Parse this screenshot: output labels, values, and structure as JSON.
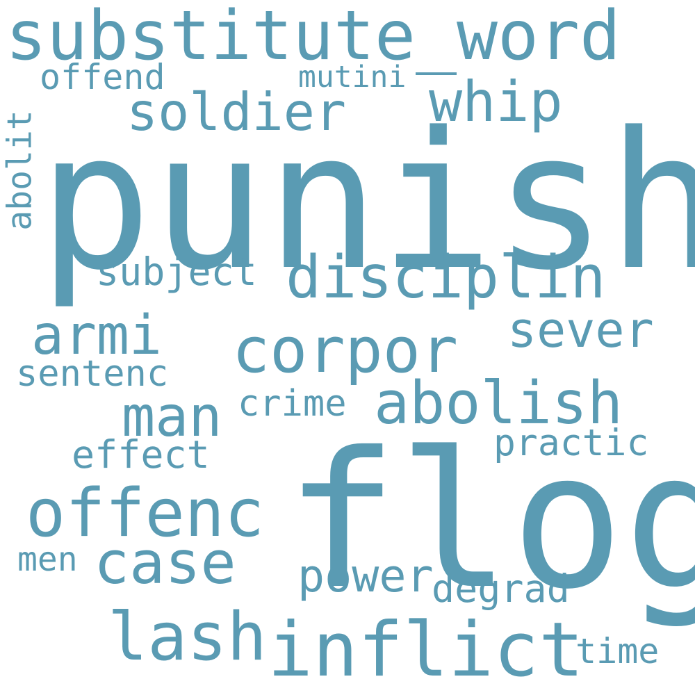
{
  "word_color": "#5a9bb3",
  "background": "#ffffff",
  "words": [
    {
      "text": "substitute_word"
    },
    {
      "text": "offend"
    },
    {
      "text": "mutini"
    },
    {
      "text": "soldier"
    },
    {
      "text": "whip"
    },
    {
      "text": "abolit"
    },
    {
      "text": "punish"
    },
    {
      "text": "subject"
    },
    {
      "text": "disciplin"
    },
    {
      "text": "armi"
    },
    {
      "text": "sever"
    },
    {
      "text": "corpor"
    },
    {
      "text": "sentenc"
    },
    {
      "text": "abolish"
    },
    {
      "text": "man"
    },
    {
      "text": "crime"
    },
    {
      "text": "effect"
    },
    {
      "text": "practic"
    },
    {
      "text": "offenc"
    },
    {
      "text": "flog"
    },
    {
      "text": "men"
    },
    {
      "text": "case"
    },
    {
      "text": "power"
    },
    {
      "text": "degrad"
    },
    {
      "text": "lash"
    },
    {
      "text": "inflict"
    },
    {
      "text": "time"
    }
  ]
}
